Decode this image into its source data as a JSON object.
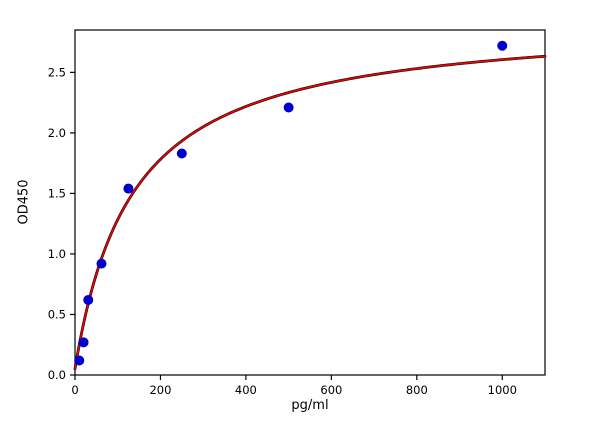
{
  "chart_data": {
    "type": "scatter",
    "title": "",
    "xlabel": "pg/ml",
    "ylabel": "OD450",
    "xlim": [
      0,
      1100
    ],
    "ylim": [
      0,
      2.85
    ],
    "xticks": [
      0,
      200,
      400,
      600,
      800,
      1000
    ],
    "yticks": [
      0,
      0.5,
      1.0,
      1.5,
      2.0,
      2.5
    ],
    "grid": false,
    "legend": "none",
    "points": [
      {
        "x": 10,
        "y": 0.12
      },
      {
        "x": 20,
        "y": 0.27
      },
      {
        "x": 31,
        "y": 0.62
      },
      {
        "x": 62,
        "y": 0.92
      },
      {
        "x": 125,
        "y": 1.54
      },
      {
        "x": 250,
        "y": 1.83
      },
      {
        "x": 500,
        "y": 2.21
      },
      {
        "x": 1000,
        "y": 2.72
      }
    ],
    "fit_curve": {
      "model": "saturation (michaelis-menten with offset): y = c0 + vmax*x/(km+x)",
      "c0": 0.05,
      "vmax": 2.9,
      "km": 135
    },
    "colors": {
      "marker": "#0000cd",
      "curve": "#ee0000",
      "curve_under": "#111111",
      "axis": "#000000"
    }
  }
}
